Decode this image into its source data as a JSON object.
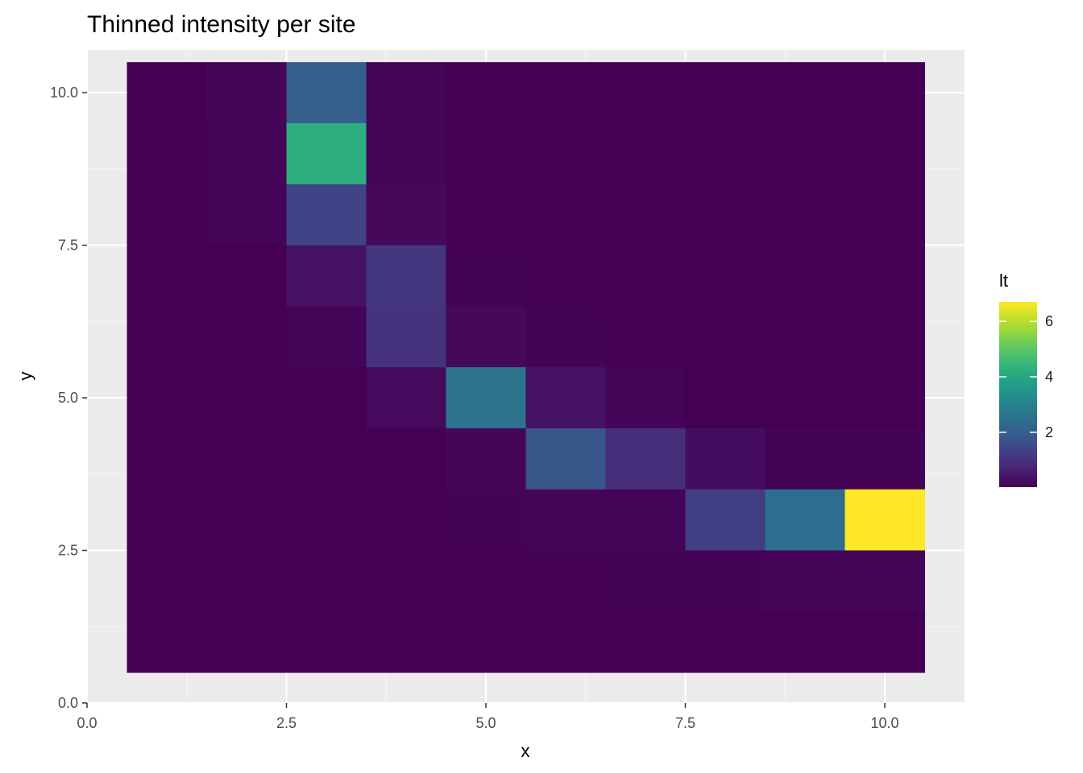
{
  "chart_data": {
    "type": "heatmap",
    "title": "Thinned intensity per site",
    "xlabel": "x",
    "ylabel": "y",
    "xlim": [
      0,
      11
    ],
    "ylim": [
      0,
      10.7
    ],
    "x_ticks": [
      0,
      2.5,
      5,
      7.5,
      10
    ],
    "x_tick_labels": [
      "0.0",
      "2.5",
      "5.0",
      "7.5",
      "10.0"
    ],
    "y_ticks": [
      0,
      2.5,
      5,
      7.5,
      10
    ],
    "y_tick_labels": [
      "0.0",
      "2.5",
      "5.0",
      "7.5",
      "10.0"
    ],
    "x_values": [
      1,
      2,
      3,
      4,
      5,
      6,
      7,
      8,
      9,
      10
    ],
    "y_values": [
      1,
      2,
      3,
      4,
      5,
      6,
      7,
      8,
      9,
      10
    ],
    "fill_name": "lt",
    "legend": {
      "title": "lt",
      "position": "right",
      "ticks": [
        2,
        4,
        6
      ],
      "tick_labels": [
        "2",
        "4",
        "6"
      ],
      "range": [
        0.02,
        6.7
      ]
    },
    "colorscale": "viridis",
    "grid": true,
    "values_by_row_from_top_y10_to_y1": [
      [
        0.02,
        0.12,
        2.0,
        0.1,
        0.02,
        0.02,
        0.02,
        0.02,
        0.02,
        0.02
      ],
      [
        0.02,
        0.1,
        4.2,
        0.1,
        0.02,
        0.02,
        0.02,
        0.02,
        0.02,
        0.02
      ],
      [
        0.02,
        0.1,
        1.35,
        0.15,
        0.02,
        0.02,
        0.02,
        0.02,
        0.02,
        0.02
      ],
      [
        0.02,
        0.02,
        0.35,
        1.05,
        0.05,
        0.02,
        0.02,
        0.02,
        0.02,
        0.02
      ],
      [
        0.02,
        0.02,
        0.08,
        1.0,
        0.15,
        0.06,
        0.02,
        0.02,
        0.02,
        0.02
      ],
      [
        0.02,
        0.02,
        0.02,
        0.2,
        2.55,
        0.35,
        0.08,
        0.02,
        0.02,
        0.02
      ],
      [
        0.02,
        0.02,
        0.02,
        0.02,
        0.12,
        1.8,
        0.9,
        0.25,
        0.05,
        0.05
      ],
      [
        0.02,
        0.02,
        0.02,
        0.02,
        0.05,
        0.1,
        0.1,
        1.25,
        2.4,
        6.7
      ],
      [
        0.02,
        0.02,
        0.02,
        0.02,
        0.02,
        0.02,
        0.06,
        0.06,
        0.1,
        0.12
      ],
      [
        0.02,
        0.02,
        0.02,
        0.02,
        0.02,
        0.02,
        0.02,
        0.02,
        0.02,
        0.02
      ]
    ]
  },
  "colors": {
    "panel_background": "#EBEBEB",
    "grid_major": "#FFFFFF",
    "grid_minor": "#F5F5F5",
    "tick_mark": "#333333",
    "viridis_stops": [
      "#440154",
      "#482878",
      "#3E4A89",
      "#31688E",
      "#26828E",
      "#1F9E89",
      "#35B779",
      "#6DCD59",
      "#B4DE2C",
      "#FDE725"
    ]
  }
}
